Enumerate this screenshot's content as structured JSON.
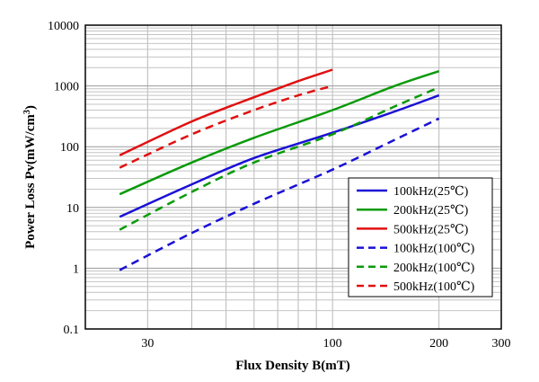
{
  "chart_data": {
    "type": "line",
    "title": "",
    "xlabel": "Flux Density B(mT)",
    "ylabel_main": "Power Loss  Pv(mW/cm",
    "ylabel_sup": "3",
    "ylabel_end": ")",
    "x_scale": "log",
    "y_scale": "log",
    "xlim": [
      20,
      300
    ],
    "ylim": [
      0.1,
      10000
    ],
    "x_ticks": [
      {
        "value": 30,
        "label": "30"
      },
      {
        "value": 100,
        "label": "100"
      },
      {
        "value": 200,
        "label": "200"
      },
      {
        "value": 300,
        "label": "300"
      }
    ],
    "y_ticks": [
      {
        "value": 0.1,
        "label": "0.1"
      },
      {
        "value": 1,
        "label": "1"
      },
      {
        "value": 10,
        "label": "10"
      },
      {
        "value": 100,
        "label": "100"
      },
      {
        "value": 1000,
        "label": "1000"
      },
      {
        "value": 10000,
        "label": "10000"
      }
    ],
    "grid": true,
    "legend_position": "lower-right",
    "series": [
      {
        "name": "100kHz(25℃)",
        "color": "#1a10d6",
        "dash": "solid",
        "x": [
          25,
          40,
          60,
          100,
          150,
          200
        ],
        "y": [
          7,
          24,
          65,
          170,
          380,
          700
        ]
      },
      {
        "name": "200kHz(25℃)",
        "color": "#0a9a0a",
        "dash": "solid",
        "x": [
          25,
          40,
          60,
          100,
          150,
          200
        ],
        "y": [
          16.5,
          55,
          140,
          400,
          1000,
          1750
        ]
      },
      {
        "name": "500kHz(25℃)",
        "color": "#e01010",
        "dash": "solid",
        "x": [
          25,
          40,
          60,
          80,
          100
        ],
        "y": [
          72,
          260,
          650,
          1200,
          1850
        ]
      },
      {
        "name": "100kHz(100℃)",
        "color": "#1a10d6",
        "dash": "dashed",
        "x": [
          25,
          40,
          60,
          100,
          150,
          200
        ],
        "y": [
          0.93,
          3.8,
          11.5,
          42,
          130,
          290
        ]
      },
      {
        "name": "200kHz(100℃)",
        "color": "#0a9a0a",
        "dash": "dashed",
        "x": [
          25,
          40,
          60,
          100,
          150,
          200
        ],
        "y": [
          4.3,
          18,
          55,
          160,
          460,
          950
        ]
      },
      {
        "name": "500kHz(100℃)",
        "color": "#e01010",
        "dash": "dashed",
        "x": [
          25,
          40,
          60,
          80,
          100
        ],
        "y": [
          45,
          160,
          400,
          700,
          1000
        ]
      }
    ]
  }
}
